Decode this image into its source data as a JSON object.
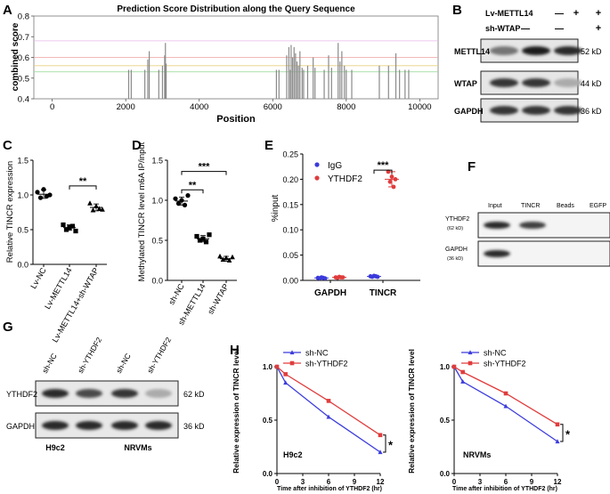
{
  "panel_labels": [
    "A",
    "B",
    "C",
    "D",
    "E",
    "F",
    "G",
    "H"
  ],
  "chart_data": [
    {
      "panel": "A",
      "type": "bar",
      "title": "Prediction Score Distribution along the Query Sequence",
      "xlabel": "Position",
      "ylabel": "combined score",
      "xlim": [
        -500,
        10500
      ],
      "ylim": [
        0.4,
        0.8
      ],
      "xticks": [
        0,
        2000,
        4000,
        6000,
        8000,
        10000
      ],
      "yticks": [
        0.4,
        0.5,
        0.6,
        0.7,
        0.8
      ],
      "ytick_labels": [
        "0.4",
        "0.5",
        "0.6",
        "0.7",
        "0.8"
      ],
      "threshold_lines": [
        {
          "value": 0.68,
          "color": "#e5b8e8"
        },
        {
          "value": 0.6,
          "color": "#f0a0a0"
        },
        {
          "value": 0.56,
          "color": "#e8d080"
        },
        {
          "value": 0.53,
          "color": "#90d890"
        }
      ],
      "bar_color": "#8a8a8a",
      "sites": [
        {
          "x": 2080,
          "y": 0.54
        },
        {
          "x": 2150,
          "y": 0.54
        },
        {
          "x": 2520,
          "y": 0.54
        },
        {
          "x": 2600,
          "y": 0.59
        },
        {
          "x": 2640,
          "y": 0.63
        },
        {
          "x": 2900,
          "y": 0.54
        },
        {
          "x": 3000,
          "y": 0.56
        },
        {
          "x": 3060,
          "y": 0.61
        },
        {
          "x": 3080,
          "y": 0.67
        },
        {
          "x": 3100,
          "y": 0.57
        },
        {
          "x": 6100,
          "y": 0.54
        },
        {
          "x": 6170,
          "y": 0.54
        },
        {
          "x": 6380,
          "y": 0.61
        },
        {
          "x": 6440,
          "y": 0.65
        },
        {
          "x": 6480,
          "y": 0.54
        },
        {
          "x": 6500,
          "y": 0.66
        },
        {
          "x": 6540,
          "y": 0.6
        },
        {
          "x": 6580,
          "y": 0.65
        },
        {
          "x": 6620,
          "y": 0.62
        },
        {
          "x": 6660,
          "y": 0.58
        },
        {
          "x": 6700,
          "y": 0.56
        },
        {
          "x": 6740,
          "y": 0.63
        },
        {
          "x": 6800,
          "y": 0.55
        },
        {
          "x": 6840,
          "y": 0.54
        },
        {
          "x": 6950,
          "y": 0.56
        },
        {
          "x": 7100,
          "y": 0.6
        },
        {
          "x": 7150,
          "y": 0.55
        },
        {
          "x": 7400,
          "y": 0.54
        },
        {
          "x": 7520,
          "y": 0.61
        },
        {
          "x": 7600,
          "y": 0.55
        },
        {
          "x": 7780,
          "y": 0.67
        },
        {
          "x": 7830,
          "y": 0.58
        },
        {
          "x": 7880,
          "y": 0.63
        },
        {
          "x": 7950,
          "y": 0.56
        },
        {
          "x": 8000,
          "y": 0.54
        },
        {
          "x": 8150,
          "y": 0.54
        },
        {
          "x": 8900,
          "y": 0.56
        },
        {
          "x": 9150,
          "y": 0.56
        },
        {
          "x": 9350,
          "y": 0.62
        },
        {
          "x": 9450,
          "y": 0.54
        },
        {
          "x": 9600,
          "y": 0.54
        },
        {
          "x": 9700,
          "y": 0.54
        }
      ]
    },
    {
      "panel": "C",
      "type": "scatter",
      "ylabel": "Relative TINCR expression",
      "ylim": [
        0.0,
        1.5
      ],
      "yticks": [
        0.0,
        0.5,
        1.0,
        1.5
      ],
      "ytick_labels": [
        "0.0",
        "0.5",
        "1.0",
        "1.5"
      ],
      "categories": [
        "Lv-NC",
        "Lv-METTL14",
        "Lv-METTL14+sh-WTAP"
      ],
      "groups": [
        {
          "points": [
            1.04,
            0.96,
            1.08,
            0.98,
            1.0
          ],
          "mean": 1.01,
          "sd": 0.06
        },
        {
          "points": [
            0.57,
            0.5,
            0.53,
            0.55,
            0.48
          ],
          "mean": 0.53,
          "sd": 0.04
        },
        {
          "points": [
            0.88,
            0.78,
            0.84,
            0.8,
            0.79
          ],
          "mean": 0.82,
          "sd": 0.05
        }
      ],
      "markers": [
        "circle",
        "square",
        "triangle"
      ],
      "significance": [
        {
          "from": 1,
          "to": 2,
          "y": 1.13,
          "label": "**"
        }
      ]
    },
    {
      "panel": "D",
      "type": "scatter",
      "ylabel": "Methylated TINCR level m6A IP/input",
      "ylim": [
        0.0,
        1.5
      ],
      "yticks": [
        0.0,
        0.5,
        1.0,
        1.5
      ],
      "ytick_labels": [
        "0.0",
        "0.5",
        "1.0",
        "1.5"
      ],
      "categories": [
        "sh-NC",
        "sh-METTL14",
        "sh-WTAP"
      ],
      "groups": [
        {
          "points": [
            1.02,
            0.96,
            1.0,
            0.94,
            1.06
          ],
          "mean": 0.99,
          "sd": 0.05
        },
        {
          "points": [
            0.55,
            0.5,
            0.52,
            0.48,
            0.57
          ],
          "mean": 0.52,
          "sd": 0.04
        },
        {
          "points": [
            0.3,
            0.26,
            0.28,
            0.25,
            0.29
          ],
          "mean": 0.27,
          "sd": 0.03
        }
      ],
      "markers": [
        "circle",
        "square",
        "triangle"
      ],
      "significance": [
        {
          "from": 0,
          "to": 1,
          "y": 1.13,
          "label": "**"
        },
        {
          "from": 0,
          "to": 2,
          "y": 1.36,
          "label": "***"
        }
      ]
    },
    {
      "panel": "E",
      "type": "scatter",
      "ylabel": "%input",
      "ylim": [
        0.0,
        0.25
      ],
      "yticks": [
        0.0,
        0.05,
        0.1,
        0.15,
        0.2,
        0.25
      ],
      "ytick_labels": [
        "0.00",
        "0.05",
        "0.10",
        "0.15",
        "0.20",
        "0.25"
      ],
      "categories": [
        "GAPDH",
        "TINCR"
      ],
      "series": [
        {
          "name": "IgG",
          "color": "#3b3bdc",
          "groups": [
            [
              0.005,
              0.004,
              0.006,
              0.005,
              0.004
            ],
            [
              0.008,
              0.007,
              0.009,
              0.008,
              0.007
            ]
          ]
        },
        {
          "name": "YTHDF2",
          "color": "#e03c3c",
          "groups": [
            [
              0.006,
              0.005,
              0.007,
              0.006,
              0.006
            ],
            [
              0.215,
              0.195,
              0.205,
              0.185,
              0.2
            ]
          ]
        }
      ],
      "error": {
        "series": 1,
        "category": 1,
        "mean": 0.2,
        "sd": 0.015
      },
      "legend": "top-left",
      "significance": [
        {
          "category": 1,
          "y": 0.218,
          "label": "***"
        }
      ]
    },
    {
      "panel": "H-left",
      "type": "line",
      "ylabel": "Relative expression of TINCR level",
      "xlabel": "Time after inhibition of YTHDF2 (hr)",
      "annotation": "H9c2",
      "xlim": [
        0,
        12
      ],
      "ylim": [
        0.0,
        1.0
      ],
      "xticks": [
        0,
        3,
        6,
        9,
        12
      ],
      "yticks": [
        0.0,
        0.5,
        1.0
      ],
      "ytick_labels": [
        "0.0",
        "0.5",
        "1.0"
      ],
      "x": [
        0,
        1,
        6,
        12
      ],
      "series": [
        {
          "name": "sh-NC",
          "color": "#3b3bdc",
          "marker": "triangle",
          "values": [
            1.0,
            0.85,
            0.53,
            0.2
          ]
        },
        {
          "name": "sh-YTHDF2",
          "color": "#e03c3c",
          "marker": "square",
          "values": [
            1.0,
            0.93,
            0.68,
            0.36
          ]
        }
      ],
      "significance": {
        "label": "*",
        "from": 0.2,
        "to": 0.36
      },
      "legend": "top"
    },
    {
      "panel": "H-right",
      "type": "line",
      "ylabel": "Relative expression of TINCR level",
      "xlabel": "Time after inhibition of YTHDF2 (hr)",
      "annotation": "NRVMs",
      "xlim": [
        0,
        12
      ],
      "ylim": [
        0.0,
        1.0
      ],
      "xticks": [
        0,
        3,
        6,
        9,
        12
      ],
      "yticks": [
        0.0,
        0.5,
        1.0
      ],
      "ytick_labels": [
        "0.0",
        "0.5",
        "1.0"
      ],
      "x": [
        0,
        1,
        6,
        12
      ],
      "series": [
        {
          "name": "sh-NC",
          "color": "#3b3bdc",
          "marker": "triangle",
          "values": [
            1.0,
            0.86,
            0.63,
            0.3
          ]
        },
        {
          "name": "sh-YTHDF2",
          "color": "#e03c3c",
          "marker": "square",
          "values": [
            1.0,
            0.95,
            0.75,
            0.46
          ]
        }
      ],
      "significance": {
        "label": "*",
        "from": 0.3,
        "to": 0.46
      },
      "legend": "top"
    }
  ],
  "blots": {
    "B": {
      "conditions": [
        {
          "label": "Lv-METTL14",
          "values": [
            "—",
            "+",
            "+"
          ]
        },
        {
          "label": "sh-WTAP",
          "values": [
            "—",
            "—",
            "+"
          ]
        }
      ],
      "rows": [
        {
          "label": "METTL14",
          "kd": "52 kD",
          "intensity": [
            0.55,
            0.95,
            0.9
          ]
        },
        {
          "label": "WTAP",
          "kd": "44 kD",
          "intensity": [
            0.85,
            0.85,
            0.3
          ]
        },
        {
          "label": "GAPDH",
          "kd": "36 kD",
          "intensity": [
            0.85,
            0.85,
            0.85
          ]
        }
      ]
    },
    "F": {
      "lanes": [
        "Input",
        "TINCR",
        "Beads",
        "EGFP"
      ],
      "rows": [
        {
          "label": "YTHDF2",
          "sublabel": "(62 kD)",
          "intensity": [
            0.9,
            0.8,
            0.0,
            0.0
          ]
        },
        {
          "label": "GAPDH",
          "sublabel": "(36 kD)",
          "intensity": [
            0.9,
            0.0,
            0.0,
            0.0
          ]
        }
      ]
    },
    "G": {
      "lanes": [
        "sh-NC",
        "sh-YTHDF2",
        "sh-NC",
        "sh-YTHDF2"
      ],
      "groups": [
        "H9c2",
        "NRVMs"
      ],
      "rows": [
        {
          "label": "YTHDF2",
          "kd": "62 kD",
          "intensity": [
            0.9,
            0.75,
            0.85,
            0.3
          ]
        },
        {
          "label": "GAPDH",
          "kd": "36 kD",
          "intensity": [
            0.9,
            0.9,
            0.9,
            0.9
          ]
        }
      ]
    }
  }
}
